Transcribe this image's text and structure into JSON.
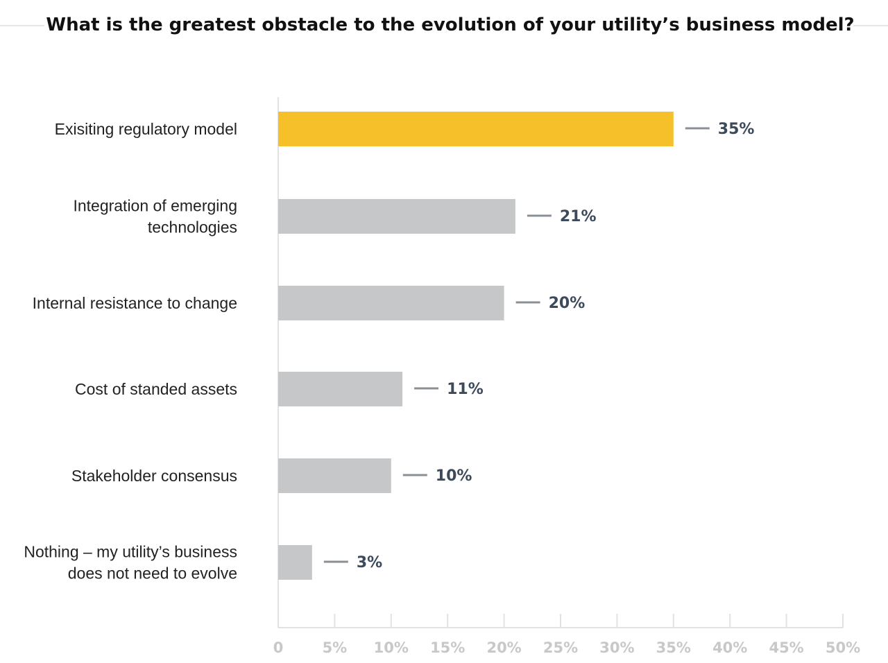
{
  "chart_data": {
    "type": "bar",
    "orientation": "horizontal",
    "title": "What is the greatest obstacle to the evolution of your utility’s business model?",
    "categories": [
      [
        "Exisiting regulatory model"
      ],
      [
        "Integration of emerging",
        "technologies"
      ],
      [
        "Internal resistance to change"
      ],
      [
        "Cost of standed assets"
      ],
      [
        "Stakeholder consensus"
      ],
      [
        "Nothing – my utility’s business",
        "does not need to evolve"
      ]
    ],
    "values": [
      35,
      21,
      20,
      11,
      10,
      3
    ],
    "data_labels": [
      "35%",
      "21%",
      "20%",
      "11%",
      "10%",
      "3%"
    ],
    "xlim": [
      0,
      50
    ],
    "x_ticks": [
      0,
      5,
      10,
      15,
      20,
      25,
      30,
      35,
      40,
      45,
      50
    ],
    "x_tick_labels": [
      "0",
      "5%",
      "10%",
      "15%",
      "20%",
      "25%",
      "30%",
      "35%",
      "40%",
      "45%",
      "50%"
    ],
    "grid": false,
    "colors": {
      "highlight": "#f5c02a",
      "default": "#c6c7c8",
      "label": "#3d4a5c",
      "axis": "#e2e2e2",
      "tick_label": "#c8c8c8"
    }
  }
}
